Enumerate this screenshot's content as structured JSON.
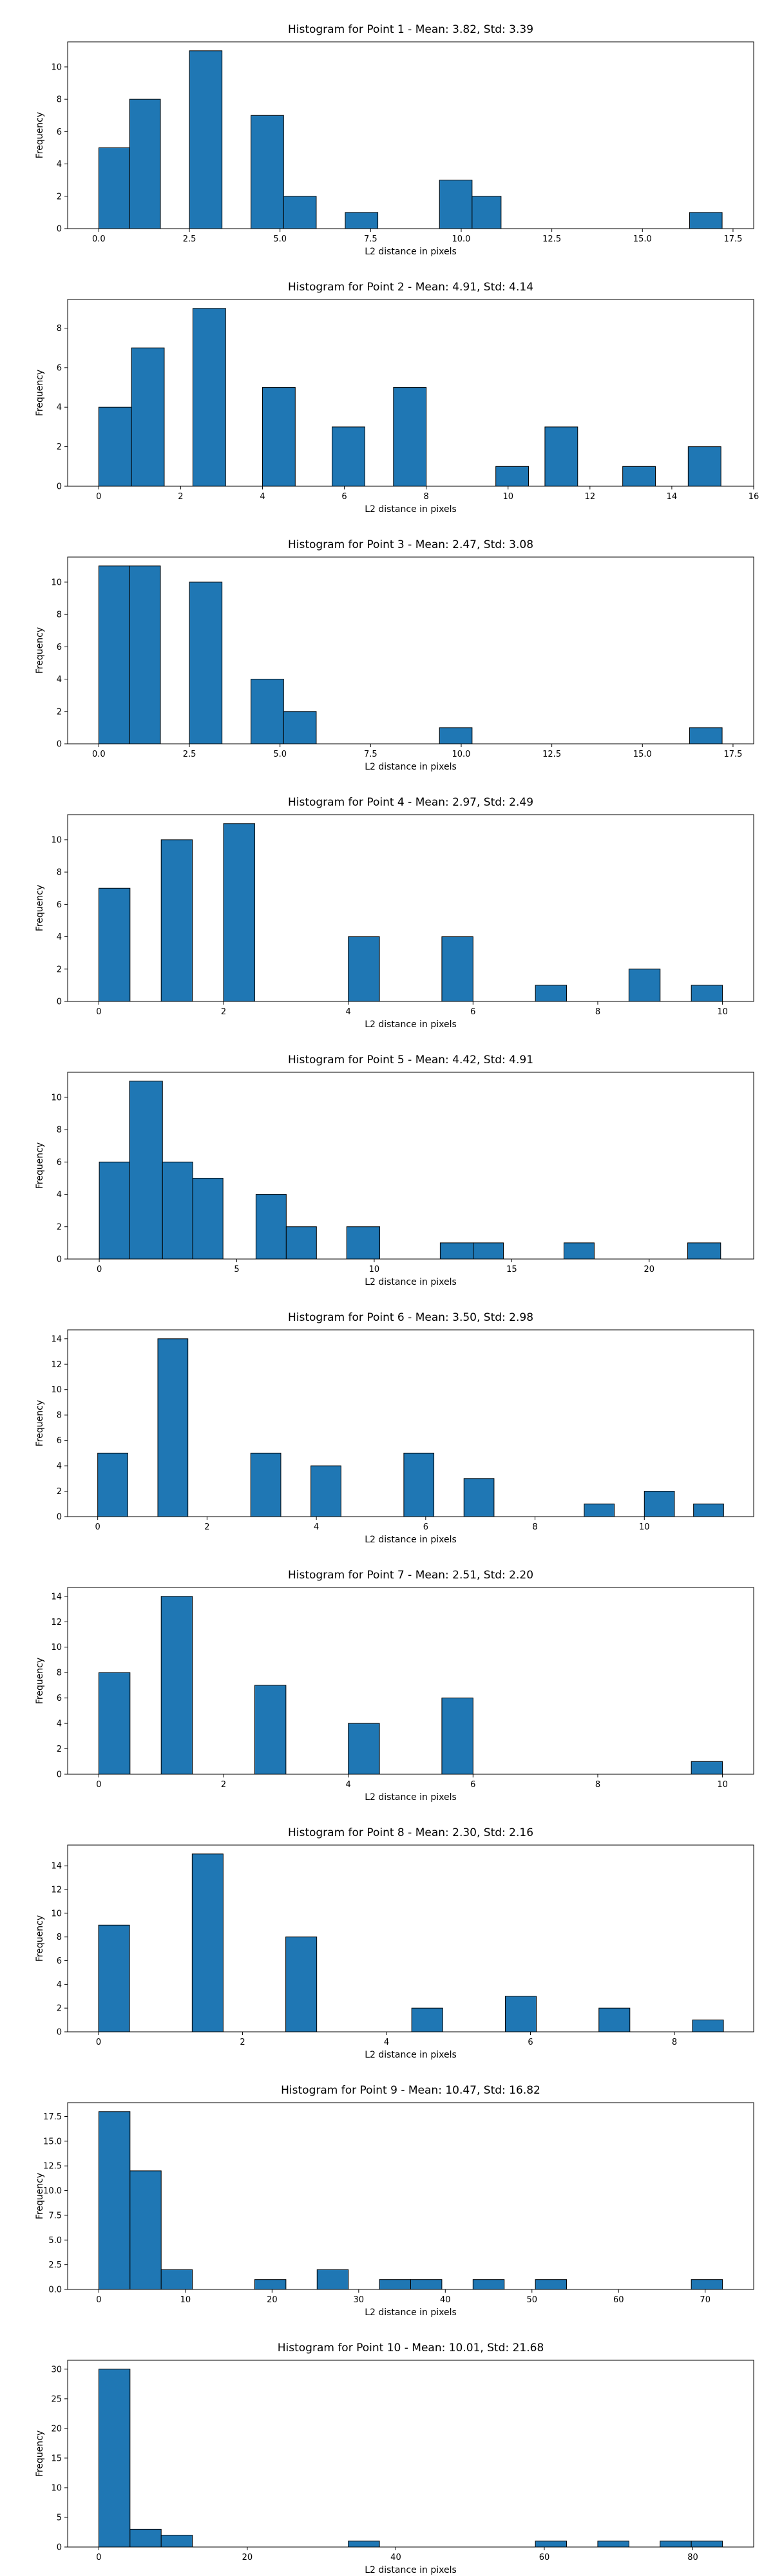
{
  "chart_data": [
    {
      "type": "bar",
      "title": "Histogram for Point 1 - Mean: 3.82, Std: 3.39",
      "xlabel": "L2 distance in pixels",
      "ylabel": "Frequency",
      "bins": [
        [
          0.0,
          0.85
        ],
        [
          0.85,
          1.7
        ],
        [
          2.5,
          3.4
        ],
        [
          4.2,
          5.1
        ],
        [
          5.1,
          6.0
        ],
        [
          6.8,
          7.7
        ],
        [
          9.4,
          10.3
        ],
        [
          10.3,
          11.1
        ],
        [
          16.3,
          17.2
        ]
      ],
      "values": [
        5,
        8,
        11,
        7,
        2,
        1,
        3,
        2,
        1
      ],
      "xlim": [
        -0.86,
        18.07
      ],
      "ylim": [
        0,
        11.55
      ],
      "xticks": [
        0.0,
        2.5,
        5.0,
        7.5,
        10.0,
        12.5,
        15.0,
        17.5
      ],
      "xtick_labels": [
        "0.0",
        "2.5",
        "5.0",
        "7.5",
        "10.0",
        "12.5",
        "15.0",
        "17.5"
      ],
      "yticks": [
        0,
        2,
        4,
        6,
        8,
        10
      ],
      "ytick_labels": [
        "0",
        "2",
        "4",
        "6",
        "8",
        "10"
      ]
    },
    {
      "type": "bar",
      "title": "Histogram for Point 2 - Mean: 4.91, Std: 4.14",
      "xlabel": "L2 distance in pixels",
      "ylabel": "Frequency",
      "bins": [
        [
          0.0,
          0.8
        ],
        [
          0.8,
          1.6
        ],
        [
          2.3,
          3.1
        ],
        [
          4.0,
          4.8
        ],
        [
          5.7,
          6.5
        ],
        [
          7.2,
          8.0
        ],
        [
          9.7,
          10.5
        ],
        [
          10.9,
          11.7
        ],
        [
          12.8,
          13.6
        ],
        [
          14.4,
          15.2
        ]
      ],
      "values": [
        4,
        7,
        9,
        5,
        3,
        5,
        1,
        3,
        1,
        2
      ],
      "xlim": [
        -0.76,
        16.0
      ],
      "ylim": [
        0,
        9.45
      ],
      "xticks": [
        0,
        2,
        4,
        6,
        8,
        10,
        12,
        14,
        16
      ],
      "xtick_labels": [
        "0",
        "2",
        "4",
        "6",
        "8",
        "10",
        "12",
        "14",
        "16"
      ],
      "yticks": [
        0,
        2,
        4,
        6,
        8
      ],
      "ytick_labels": [
        "0",
        "2",
        "4",
        "6",
        "8"
      ]
    },
    {
      "type": "bar",
      "title": "Histogram for Point 3 - Mean: 2.47, Std: 3.08",
      "xlabel": "L2 distance in pixels",
      "ylabel": "Frequency",
      "bins": [
        [
          0.0,
          0.85
        ],
        [
          0.85,
          1.7
        ],
        [
          2.5,
          3.4
        ],
        [
          4.2,
          5.1
        ],
        [
          5.1,
          6.0
        ],
        [
          9.4,
          10.3
        ],
        [
          16.3,
          17.2
        ]
      ],
      "values": [
        11,
        11,
        10,
        4,
        2,
        1,
        1
      ],
      "xlim": [
        -0.86,
        18.07
      ],
      "ylim": [
        0,
        11.55
      ],
      "xticks": [
        0.0,
        2.5,
        5.0,
        7.5,
        10.0,
        12.5,
        15.0,
        17.5
      ],
      "xtick_labels": [
        "0.0",
        "2.5",
        "5.0",
        "7.5",
        "10.0",
        "12.5",
        "15.0",
        "17.5"
      ],
      "yticks": [
        0,
        2,
        4,
        6,
        8,
        10
      ],
      "ytick_labels": [
        "0",
        "2",
        "4",
        "6",
        "8",
        "10"
      ]
    },
    {
      "type": "bar",
      "title": "Histogram for Point 4 - Mean: 2.97, Std: 2.49",
      "xlabel": "L2 distance in pixels",
      "ylabel": "Frequency",
      "bins": [
        [
          0.0,
          0.5
        ],
        [
          1.0,
          1.5
        ],
        [
          2.0,
          2.5
        ],
        [
          4.0,
          4.5
        ],
        [
          5.5,
          6.0
        ],
        [
          7.0,
          7.5
        ],
        [
          8.5,
          9.0
        ],
        [
          9.5,
          10.0
        ]
      ],
      "values": [
        7,
        10,
        11,
        4,
        4,
        1,
        2,
        1
      ],
      "xlim": [
        -0.5,
        10.5
      ],
      "ylim": [
        0,
        11.55
      ],
      "xticks": [
        0,
        2,
        4,
        6,
        8,
        10
      ],
      "xtick_labels": [
        "0",
        "2",
        "4",
        "6",
        "8",
        "10"
      ],
      "yticks": [
        0,
        2,
        4,
        6,
        8,
        10
      ],
      "ytick_labels": [
        "0",
        "2",
        "4",
        "6",
        "8",
        "10"
      ]
    },
    {
      "type": "bar",
      "title": "Histogram for Point 5 - Mean: 4.42, Std: 4.91",
      "xlabel": "L2 distance in pixels",
      "ylabel": "Frequency",
      "bins": [
        [
          0.0,
          1.1
        ],
        [
          1.1,
          2.3
        ],
        [
          2.3,
          3.4
        ],
        [
          3.4,
          4.5
        ],
        [
          5.7,
          6.8
        ],
        [
          6.8,
          7.9
        ],
        [
          9.0,
          10.2
        ],
        [
          12.4,
          13.6
        ],
        [
          13.6,
          14.7
        ],
        [
          16.9,
          18.0
        ],
        [
          21.4,
          22.6
        ]
      ],
      "values": [
        6,
        11,
        6,
        5,
        4,
        2,
        2,
        1,
        1,
        1,
        1
      ],
      "xlim": [
        -1.15,
        23.8
      ],
      "ylim": [
        0,
        11.55
      ],
      "xticks": [
        0,
        5,
        10,
        15,
        20
      ],
      "xtick_labels": [
        "0",
        "5",
        "10",
        "15",
        "20"
      ],
      "yticks": [
        0,
        2,
        4,
        6,
        8,
        10
      ],
      "ytick_labels": [
        "0",
        "2",
        "4",
        "6",
        "8",
        "10"
      ]
    },
    {
      "type": "bar",
      "title": "Histogram for Point 6 - Mean: 3.50, Std: 2.98",
      "xlabel": "L2 distance in pixels",
      "ylabel": "Frequency",
      "bins": [
        [
          0.0,
          0.55
        ],
        [
          1.1,
          1.65
        ],
        [
          2.8,
          3.35
        ],
        [
          3.9,
          4.45
        ],
        [
          5.6,
          6.15
        ],
        [
          6.7,
          7.25
        ],
        [
          8.9,
          9.45
        ],
        [
          10.0,
          10.55
        ],
        [
          10.9,
          11.45
        ]
      ],
      "values": [
        5,
        14,
        5,
        4,
        5,
        3,
        1,
        2,
        1
      ],
      "xlim": [
        -0.55,
        12.0
      ],
      "ylim": [
        0,
        14.7
      ],
      "xticks": [
        0,
        2,
        4,
        6,
        8,
        10
      ],
      "xtick_labels": [
        "0",
        "2",
        "4",
        "6",
        "8",
        "10"
      ],
      "yticks": [
        0,
        2,
        4,
        6,
        8,
        10,
        12,
        14
      ],
      "ytick_labels": [
        "0",
        "2",
        "4",
        "6",
        "8",
        "10",
        "12",
        "14"
      ]
    },
    {
      "type": "bar",
      "title": "Histogram for Point 7 - Mean: 2.51, Std: 2.20",
      "xlabel": "L2 distance in pixels",
      "ylabel": "Frequency",
      "bins": [
        [
          0.0,
          0.5
        ],
        [
          1.0,
          1.5
        ],
        [
          2.5,
          3.0
        ],
        [
          4.0,
          4.5
        ],
        [
          5.5,
          6.0
        ],
        [
          9.5,
          10.0
        ]
      ],
      "values": [
        8,
        14,
        7,
        4,
        6,
        1
      ],
      "xlim": [
        -0.5,
        10.5
      ],
      "ylim": [
        0,
        14.7
      ],
      "xticks": [
        0,
        2,
        4,
        6,
        8,
        10
      ],
      "xtick_labels": [
        "0",
        "2",
        "4",
        "6",
        "8",
        "10"
      ],
      "yticks": [
        0,
        2,
        4,
        6,
        8,
        10,
        12,
        14
      ],
      "ytick_labels": [
        "0",
        "2",
        "4",
        "6",
        "8",
        "10",
        "12",
        "14"
      ]
    },
    {
      "type": "bar",
      "title": "Histogram for Point 8 - Mean: 2.30, Std: 2.16",
      "xlabel": "L2 distance in pixels",
      "ylabel": "Frequency",
      "bins": [
        [
          0.0,
          0.43
        ],
        [
          1.3,
          1.73
        ],
        [
          2.6,
          3.03
        ],
        [
          4.35,
          4.78
        ],
        [
          5.65,
          6.08
        ],
        [
          6.95,
          7.38
        ],
        [
          8.25,
          8.68
        ]
      ],
      "values": [
        9,
        15,
        8,
        2,
        3,
        2,
        1
      ],
      "xlim": [
        -0.43,
        9.1
      ],
      "ylim": [
        0,
        15.75
      ],
      "xticks": [
        0,
        2,
        4,
        6,
        8
      ],
      "xtick_labels": [
        "0",
        "2",
        "4",
        "6",
        "8"
      ],
      "yticks": [
        0,
        2,
        4,
        6,
        8,
        10,
        12,
        14
      ],
      "ytick_labels": [
        "0",
        "2",
        "4",
        "6",
        "8",
        "10",
        "12",
        "14"
      ]
    },
    {
      "type": "bar",
      "title": "Histogram for Point 9 - Mean: 10.47, Std: 16.82",
      "xlabel": "L2 distance in pixels",
      "ylabel": "Frequency",
      "bins": [
        [
          0.0,
          3.6
        ],
        [
          3.6,
          7.2
        ],
        [
          7.2,
          10.8
        ],
        [
          18.0,
          21.6
        ],
        [
          25.2,
          28.8
        ],
        [
          32.4,
          36.0
        ],
        [
          36.0,
          39.6
        ],
        [
          43.2,
          46.8
        ],
        [
          50.4,
          54.0
        ],
        [
          68.4,
          72.0
        ]
      ],
      "values": [
        18,
        12,
        2,
        1,
        2,
        1,
        1,
        1,
        1,
        1
      ],
      "xlim": [
        -3.6,
        75.6
      ],
      "ylim": [
        0,
        18.9
      ],
      "xticks": [
        0,
        10,
        20,
        30,
        40,
        50,
        60,
        70
      ],
      "xtick_labels": [
        "0",
        "10",
        "20",
        "30",
        "40",
        "50",
        "60",
        "70"
      ],
      "yticks": [
        0,
        2.5,
        5.0,
        7.5,
        10.0,
        12.5,
        15.0,
        17.5
      ],
      "ytick_labels": [
        "0.0",
        "2.5",
        "5.0",
        "7.5",
        "10.0",
        "12.5",
        "15.0",
        "17.5"
      ]
    },
    {
      "type": "bar",
      "title": "Histogram for Point 10 - Mean: 10.01, Std: 21.68",
      "xlabel": "L2 distance in pixels",
      "ylabel": "Frequency",
      "bins": [
        [
          0.0,
          4.2
        ],
        [
          4.2,
          8.4
        ],
        [
          8.4,
          12.6
        ],
        [
          33.6,
          37.8
        ],
        [
          58.8,
          63.0
        ],
        [
          67.2,
          71.4
        ],
        [
          75.6,
          79.8
        ],
        [
          79.8,
          84.0
        ]
      ],
      "values": [
        30,
        3,
        2,
        1,
        1,
        1,
        1,
        1
      ],
      "xlim": [
        -4.2,
        88.2
      ],
      "ylim": [
        0,
        31.5
      ],
      "xticks": [
        0,
        20,
        40,
        60,
        80
      ],
      "xtick_labels": [
        "0",
        "20",
        "40",
        "60",
        "80"
      ],
      "yticks": [
        0,
        5,
        10,
        15,
        20,
        25,
        30
      ],
      "ytick_labels": [
        "0",
        "5",
        "10",
        "15",
        "20",
        "25",
        "30"
      ]
    }
  ],
  "colors": {
    "bar_fill": "#1f77b4",
    "bar_edge": "#000000"
  }
}
